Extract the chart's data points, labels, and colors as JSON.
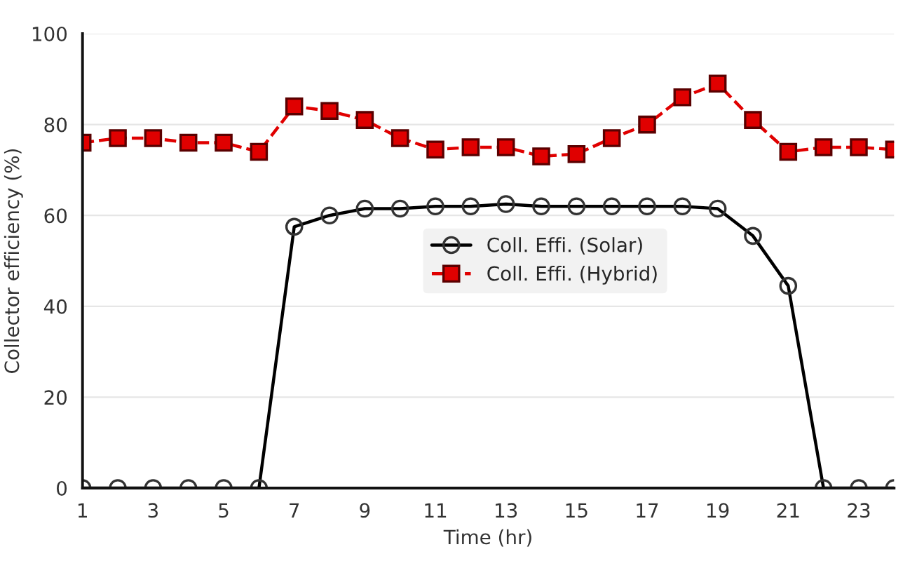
{
  "chart_data": {
    "type": "line",
    "xlabel": "Time (hr)",
    "ylabel": "Collector efficiency (%)",
    "x": [
      1,
      2,
      3,
      4,
      5,
      6,
      7,
      8,
      9,
      10,
      11,
      12,
      13,
      14,
      15,
      16,
      17,
      18,
      19,
      20,
      21,
      22,
      23,
      24
    ],
    "series": [
      {
        "name": "Coll. Effi. (Solar)",
        "color": "#000000",
        "marker": "circle",
        "line_style": "solid",
        "values": [
          0,
          0,
          0,
          0,
          0,
          0,
          57.5,
          60,
          61.5,
          61.5,
          62,
          62,
          62.5,
          62,
          62,
          62,
          62,
          62,
          61.5,
          55.5,
          44.5,
          0,
          0,
          0
        ]
      },
      {
        "name": "Coll. Effi. (Hybrid)",
        "color": "#e00000",
        "marker": "square",
        "line_style": "dashed",
        "values": [
          76,
          77,
          77,
          76,
          76,
          74,
          84,
          83,
          81,
          77,
          74.5,
          75,
          75,
          73,
          73.5,
          77,
          80,
          86,
          89,
          81,
          74,
          75,
          75,
          74.5
        ]
      }
    ],
    "xlim": [
      1,
      24
    ],
    "xticks": [
      1,
      3,
      5,
      7,
      9,
      11,
      13,
      15,
      17,
      19,
      21,
      23
    ],
    "ylim": [
      0,
      100
    ],
    "yticks": [
      0,
      20,
      40,
      60,
      80,
      100
    ],
    "grid": "y",
    "legend": "center"
  }
}
